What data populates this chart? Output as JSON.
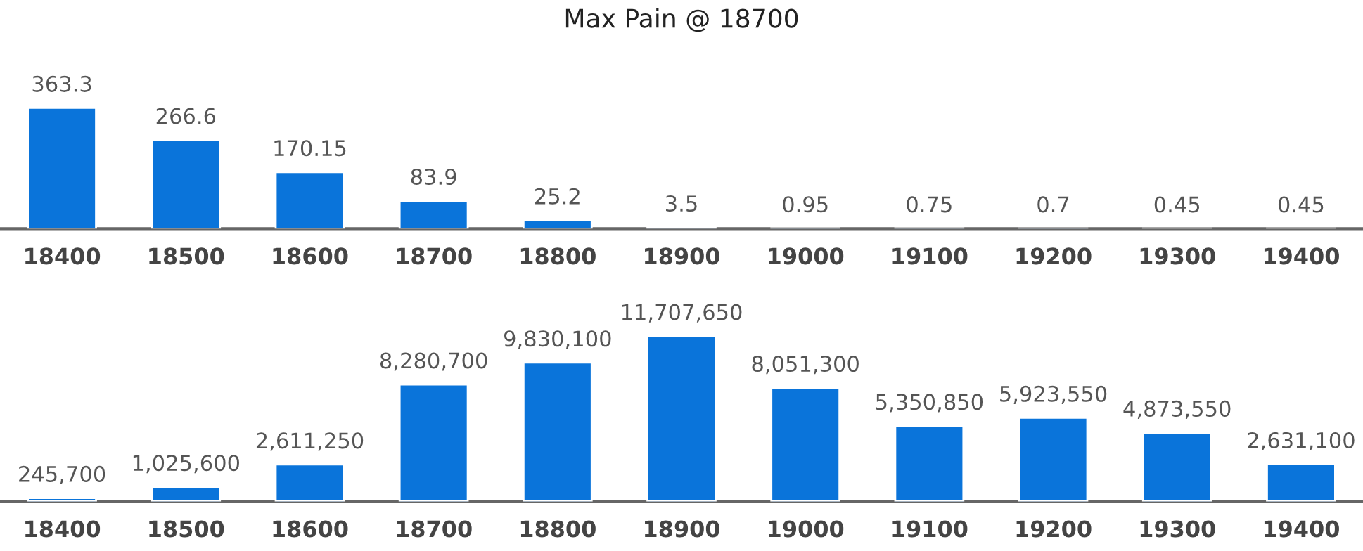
{
  "chart_data": [
    {
      "type": "bar",
      "title": "Max Pain @ 18700",
      "categories": [
        "18400",
        "18500",
        "18600",
        "18700",
        "18800",
        "18900",
        "19000",
        "19100",
        "19200",
        "19300",
        "19400"
      ],
      "values": [
        363.3,
        266.6,
        170.15,
        83.9,
        25.2,
        3.5,
        0.95,
        0.75,
        0.7,
        0.45,
        0.45
      ],
      "color": "#0a74da",
      "data_labels": true,
      "tick_labels": "x",
      "legend": false
    },
    {
      "type": "bar",
      "categories": [
        "18400",
        "18500",
        "18600",
        "18700",
        "18800",
        "18900",
        "19000",
        "19100",
        "19200",
        "19300",
        "19400"
      ],
      "values": [
        245700,
        1025600,
        2611250,
        8280700,
        9830100,
        11707650,
        8051300,
        5350850,
        5923550,
        4873550,
        2631100
      ],
      "value_labels": [
        "245,700",
        "1,025,600",
        "2,611,250",
        "8,280,700",
        "9,830,100",
        "11,707,650",
        "8,051,300",
        "5,350,850",
        "5,923,550",
        "4,873,550",
        "2,631,100"
      ],
      "color": "#0a74da",
      "tick_labels": "x",
      "legend": false
    }
  ]
}
